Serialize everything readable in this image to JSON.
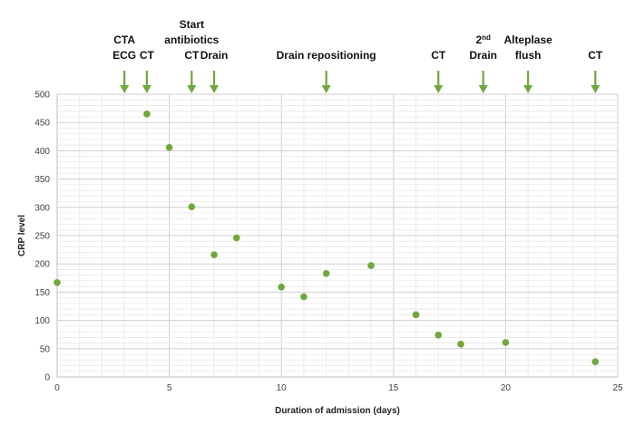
{
  "chart_data": {
    "type": "scatter",
    "xlabel": "Duration of admission (days)",
    "ylabel": "CRP level",
    "xlim": [
      0,
      25
    ],
    "ylim": [
      0,
      500
    ],
    "x_ticks": [
      0,
      5,
      10,
      15,
      20,
      25
    ],
    "y_ticks": [
      0,
      50,
      100,
      150,
      200,
      250,
      300,
      350,
      400,
      450,
      500
    ],
    "x_tick_labels": [
      "0",
      "5",
      "10",
      "15",
      "20",
      "25"
    ],
    "y_tick_labels": [
      "0",
      "50",
      "100",
      "150",
      "200",
      "250",
      "300",
      "350",
      "400",
      "450",
      "500"
    ],
    "grid": "major-and-minor",
    "marker_color": "#70a83b",
    "arrow_color": "#70a83b",
    "points": [
      {
        "x": 0,
        "y": 167
      },
      {
        "x": 4,
        "y": 465
      },
      {
        "x": 5,
        "y": 406
      },
      {
        "x": 6,
        "y": 301
      },
      {
        "x": 7,
        "y": 216
      },
      {
        "x": 8,
        "y": 246
      },
      {
        "x": 10,
        "y": 159
      },
      {
        "x": 11,
        "y": 142
      },
      {
        "x": 12,
        "y": 183
      },
      {
        "x": 14,
        "y": 197
      },
      {
        "x": 16,
        "y": 110
      },
      {
        "x": 17,
        "y": 74
      },
      {
        "x": 18,
        "y": 58
      },
      {
        "x": 20,
        "y": 61
      },
      {
        "x": 24,
        "y": 27
      }
    ],
    "annotations": [
      {
        "x": 3,
        "lines": [
          "CTA",
          "ECG"
        ]
      },
      {
        "x": 4,
        "lines": [
          "CT"
        ]
      },
      {
        "x": 6,
        "lines": [
          "Start",
          "antibiotics",
          "CT"
        ]
      },
      {
        "x": 7,
        "lines": [
          "Drain"
        ]
      },
      {
        "x": 12,
        "lines": [
          "Drain repositioning"
        ]
      },
      {
        "x": 17,
        "lines": [
          "CT"
        ]
      },
      {
        "x": 19,
        "lines": [
          "2nd",
          "Drain"
        ]
      },
      {
        "x": 21,
        "lines": [
          "Alteplase",
          "flush"
        ]
      },
      {
        "x": 24,
        "lines": [
          "CT"
        ]
      }
    ]
  }
}
